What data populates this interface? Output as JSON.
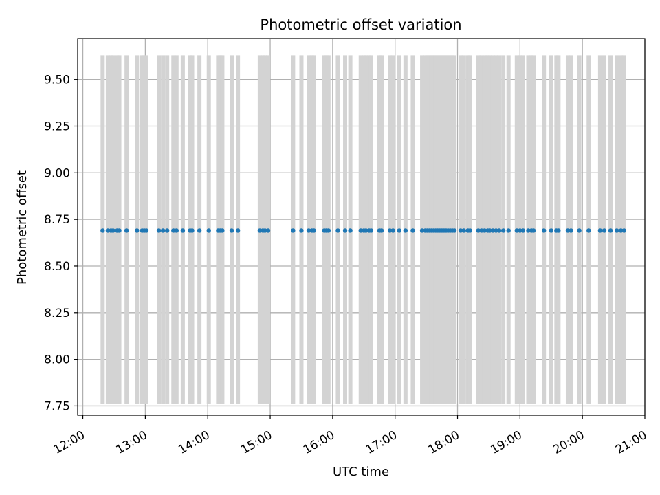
{
  "chart_data": {
    "type": "scatter",
    "title": "Photometric offset variation",
    "xlabel": "UTC time",
    "ylabel": "Photometric offset",
    "x_tick_labels": [
      "12:00",
      "13:00",
      "14:00",
      "15:00",
      "16:00",
      "17:00",
      "18:00",
      "19:00",
      "20:00",
      "21:00"
    ],
    "y_tick_labels": [
      "7.75",
      "8.00",
      "8.25",
      "8.50",
      "8.75",
      "9.00",
      "9.25",
      "9.50"
    ],
    "y_ticks": [
      7.75,
      8.0,
      8.25,
      8.5,
      8.75,
      9.0,
      9.25,
      9.5
    ],
    "xlim": [
      "11:55",
      "21:00"
    ],
    "ylim": [
      7.7,
      9.72
    ],
    "grid": true,
    "colors": {
      "points": "#1f77b4",
      "error_bars": "#d3d3d3",
      "grid": "#b0b0b0",
      "axes": "#000000"
    },
    "error_range": [
      7.76,
      9.63
    ],
    "series": [
      {
        "y_value": 8.69,
        "x": [
          "12:19",
          "12:24",
          "12:27",
          "12:29",
          "12:33",
          "12:35",
          "12:42",
          "12:52",
          "12:57",
          "12:59",
          "13:01",
          "13:13",
          "13:17",
          "13:21",
          "13:27",
          "13:30",
          "13:36",
          "13:43",
          "13:45",
          "13:52",
          "14:01",
          "14:10",
          "14:12",
          "14:14",
          "14:23",
          "14:29",
          "14:50",
          "14:53",
          "14:55",
          "14:58",
          "15:22",
          "15:30",
          "15:37",
          "15:40",
          "15:42",
          "15:52",
          "15:54",
          "15:56",
          "16:05",
          "16:12",
          "16:17",
          "16:27",
          "16:30",
          "16:32",
          "16:35",
          "16:37",
          "16:45",
          "16:47",
          "16:55",
          "16:58",
          "17:04",
          "17:10",
          "17:17",
          "17:26",
          "17:29",
          "17:31",
          "17:33",
          "17:35",
          "17:37",
          "17:39",
          "17:41",
          "17:43",
          "17:45",
          "17:47",
          "17:49",
          "17:51",
          "17:53",
          "17:55",
          "17:57",
          "18:03",
          "18:06",
          "18:10",
          "18:12",
          "18:20",
          "18:23",
          "18:26",
          "18:29",
          "18:31",
          "18:34",
          "18:37",
          "18:40",
          "18:44",
          "18:49",
          "18:57",
          "19:00",
          "19:03",
          "19:08",
          "19:11",
          "19:13",
          "19:23",
          "19:30",
          "19:35",
          "19:37",
          "19:46",
          "19:49",
          "19:57",
          "20:06",
          "20:17",
          "20:21",
          "20:27",
          "20:33",
          "20:37",
          "20:40"
        ]
      }
    ]
  }
}
